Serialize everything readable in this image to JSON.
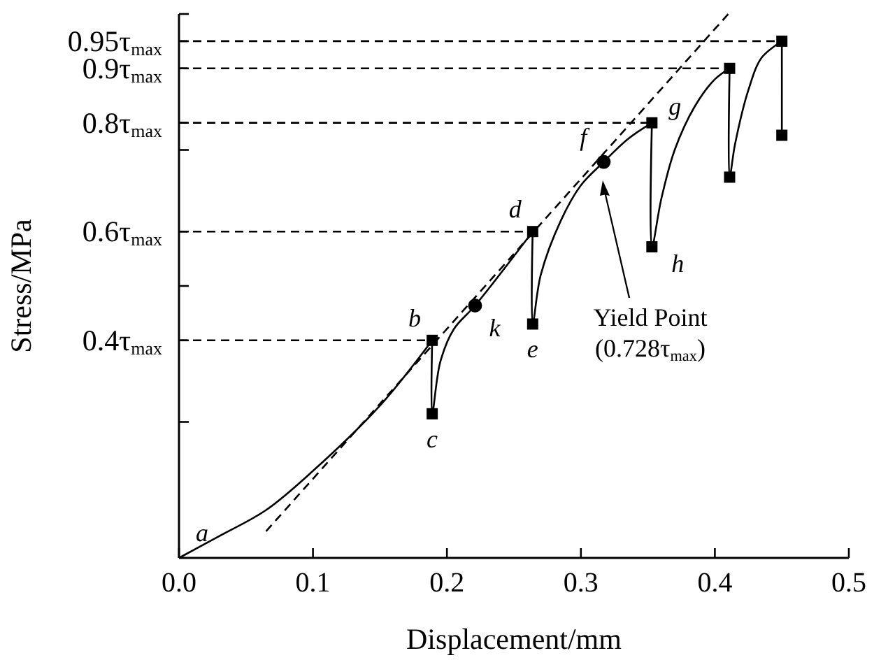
{
  "chart_data": {
    "type": "line",
    "xlabel": "Displacement/mm",
    "ylabel": "Stress/MPa",
    "xlim": [
      0,
      0.5
    ],
    "ylim": [
      0,
      1
    ],
    "xticks": [
      {
        "value": 0,
        "label": "0.0"
      },
      0.1,
      0.2,
      0.3,
      0.4,
      0.5
    ],
    "yticks": [
      {
        "value": 0.25,
        "label": null
      },
      {
        "value": 0.4,
        "label": "0.4τ$_{max}$"
      },
      {
        "value": 0.5,
        "label": null
      },
      {
        "value": 0.6,
        "label": "0.6τ$_{max}$"
      },
      {
        "value": 0.75,
        "label": null
      },
      {
        "value": 0.8,
        "label": "0.8τ$_{max}$"
      },
      {
        "value": 0.9,
        "label": "0.9τ$_{max}$"
      },
      {
        "value": 0.95,
        "label": "0.95τ$_{max}$"
      },
      {
        "value": 1,
        "label": null
      }
    ],
    "grid": false,
    "series": [
      {
        "color": "#000000",
        "marker": "none",
        "line_style": "solid",
        "x": [
          0,
          0.03,
          0.065,
          0.1,
          0.15,
          0.189,
          0.189,
          0.195,
          0.205,
          0.221,
          0.264,
          0.264,
          0.27,
          0.285,
          0.3,
          0.317,
          0.335,
          0.353,
          0.353,
          0.36,
          0.37,
          0.385,
          0.4,
          0.411,
          0.411,
          0.415,
          0.425,
          0.435,
          0.45,
          0.45
        ],
        "values": [
          0,
          0.04,
          0.088,
          0.16,
          0.28,
          0.4,
          0.265,
          0.36,
          0.42,
          0.464,
          0.6,
          0.43,
          0.52,
          0.62,
          0.685,
          0.728,
          0.77,
          0.8,
          0.572,
          0.66,
          0.75,
          0.83,
          0.88,
          0.9,
          0.7,
          0.76,
          0.86,
          0.92,
          0.95,
          0.777
        ]
      },
      {
        "type": "line",
        "color": "#000000",
        "marker": "none",
        "line_style": "dashed",
        "x": [
          0.065,
          0.41
        ],
        "values": [
          0.049,
          1
        ]
      },
      {
        "type": "line",
        "color": "#000000",
        "marker": "none",
        "line_style": "dashed",
        "x": [
          0,
          0.189
        ],
        "values": [
          0.4,
          0.4
        ]
      },
      {
        "type": "line",
        "color": "#000000",
        "marker": "none",
        "line_style": "dashed",
        "x": [
          0,
          0.264
        ],
        "values": [
          0.6,
          0.6
        ]
      },
      {
        "type": "line",
        "color": "#000000",
        "marker": "none",
        "line_style": "dashed",
        "x": [
          0,
          0.353
        ],
        "values": [
          0.8,
          0.8
        ]
      },
      {
        "type": "line",
        "color": "#000000",
        "marker": "none",
        "line_style": "dashed",
        "x": [
          0,
          0.411
        ],
        "values": [
          0.9,
          0.9
        ]
      },
      {
        "type": "line",
        "color": "#000000",
        "marker": "none",
        "line_style": "dashed",
        "x": [
          0,
          0.45
        ],
        "values": [
          0.95,
          0.95
        ]
      },
      {
        "type": "scatter",
        "color": "#000000",
        "marker": "square",
        "x": [
          0.189,
          0.189,
          0.264,
          0.264,
          0.353,
          0.353,
          0.411,
          0.411,
          0.45,
          0.45
        ],
        "values": [
          0.4,
          0.265,
          0.6,
          0.43,
          0.8,
          0.572,
          0.9,
          0.7,
          0.95,
          0.777
        ]
      },
      {
        "type": "scatter",
        "color": "#000000",
        "marker": "circle",
        "x": [
          0.221,
          0.317
        ],
        "values": [
          0.464,
          0.728
        ]
      }
    ],
    "annotations": [
      {
        "text": "a",
        "x": 0,
        "y": 0
      },
      {
        "text": "b",
        "x": 0.189,
        "y": 0.4
      },
      {
        "text": "c",
        "x": 0.189,
        "y": 0.265
      },
      {
        "text": "k",
        "x": 0.221,
        "y": 0.464
      },
      {
        "text": "d",
        "x": 0.264,
        "y": 0.6
      },
      {
        "text": "e",
        "x": 0.264,
        "y": 0.43
      },
      {
        "text": "f",
        "x": 0.317,
        "y": 0.728
      },
      {
        "text": "g",
        "x": 0.353,
        "y": 0.8
      },
      {
        "text": "h",
        "x": 0.353,
        "y": 0.572
      },
      "Yield Point\n(0.728τ$_{max}$)"
    ]
  }
}
